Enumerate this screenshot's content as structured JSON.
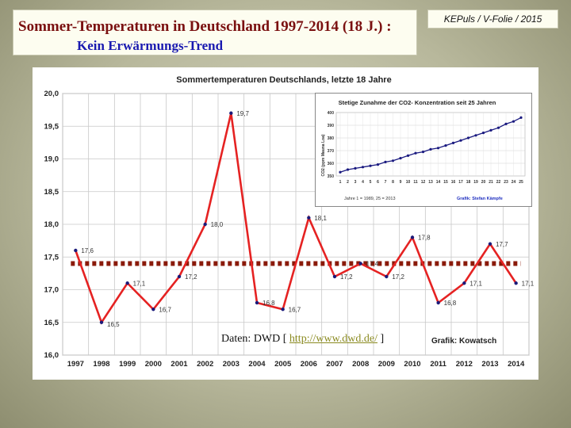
{
  "slide": {
    "title_line1": "Sommer-Temperaturen in Deutschland 1997-2014 (18 J.) :",
    "title_line2": "Kein Erwärmungs-Trend",
    "tag": "KEPuls / V-Folie / 2015"
  },
  "chart_data": [
    {
      "type": "line",
      "title": "Sommertemperaturen Deutschlands, letzte 18 Jahre",
      "categories": [
        "1997",
        "1998",
        "1999",
        "2000",
        "2001",
        "2002",
        "2003",
        "2004",
        "2005",
        "2006",
        "2007",
        "2008",
        "2009",
        "2010",
        "2011",
        "2012",
        "2013",
        "2014"
      ],
      "series": [
        {
          "name": "",
          "values": [
            17.6,
            16.5,
            17.1,
            16.7,
            17.2,
            18.0,
            19.7,
            16.8,
            16.7,
            18.1,
            17.2,
            17.4,
            17.2,
            17.8,
            16.8,
            17.1,
            17.7,
            17.1
          ],
          "color": "#e52222"
        }
      ],
      "data_labels": [
        "17,6",
        "16,5",
        "17,1",
        "16,7",
        "17,2",
        "18,0",
        "19,7",
        "16,8",
        "16,7",
        "18,1",
        "17,2",
        "17,4",
        "17,2",
        "17,8",
        "16,8",
        "17,1",
        "17,7",
        "17,1"
      ],
      "mean_line": {
        "value": 17.4,
        "color": "#8a1a0a"
      },
      "ylim": [
        16.0,
        20.0
      ],
      "yticks": [
        "16,0",
        "16,5",
        "17,0",
        "17,5",
        "18,0",
        "18,5",
        "19,0",
        "19,5",
        "20,0"
      ],
      "grid": true,
      "source_prefix": "Daten: DWD  [ ",
      "source_link": "http://www.dwd.de/",
      "source_suffix": " ]",
      "credit": "Grafik: Kowatsch"
    },
    {
      "type": "line",
      "title": "Stetige Zunahme der CO2- Konzentration seit 25 Jahren",
      "ylabel": "CO2 (ppm Mauna Loa)",
      "categories": [
        "1",
        "2",
        "3",
        "4",
        "5",
        "6",
        "7",
        "8",
        "9",
        "10",
        "11",
        "12",
        "13",
        "14",
        "15",
        "16",
        "17",
        "18",
        "19",
        "20",
        "21",
        "22",
        "23",
        "24",
        "25"
      ],
      "series": [
        {
          "name": "",
          "values": [
            353,
            355,
            356,
            357,
            358,
            359,
            361,
            362,
            364,
            366,
            368,
            369,
            371,
            372,
            374,
            376,
            378,
            380,
            382,
            384,
            386,
            388,
            391,
            393,
            396
          ],
          "color": "#1a1a80"
        }
      ],
      "ylim": [
        350,
        400
      ],
      "yticks": [
        "350",
        "360",
        "370",
        "380",
        "390",
        "400"
      ],
      "grid": true,
      "footnote": "Jahre 1 = 1989, 25 = 2013",
      "credit": "Grafik: Stefan Kämpfe"
    }
  ]
}
